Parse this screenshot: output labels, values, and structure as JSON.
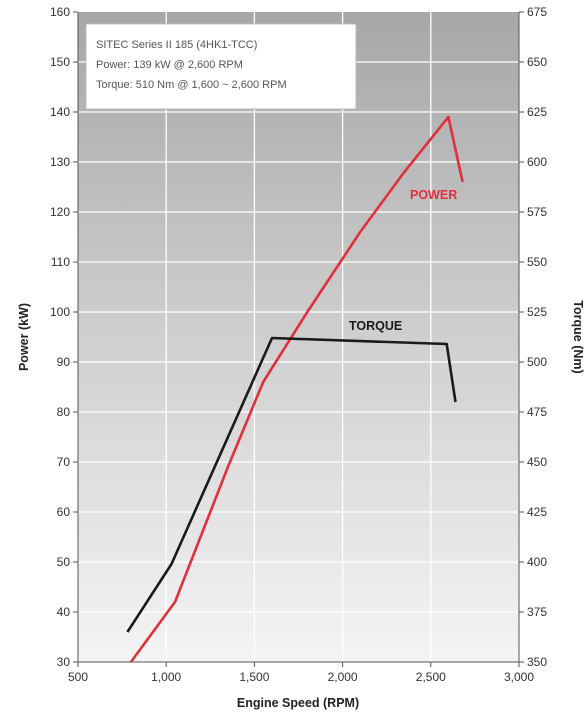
{
  "chart_data": {
    "type": "line",
    "legend_box": {
      "lines": [
        "SITEC Series II 185 (4HK1-TCC)",
        "Power: 139 kW @ 2,600 RPM",
        "Torque: 510 Nm @ 1,600 ~ 2,600 RPM"
      ],
      "placement": "top-left"
    },
    "xlabel": "Engine Speed (RPM)",
    "ylabel_left": "Power (kW)",
    "ylabel_right": "Torque (Nm)",
    "xlim": [
      500,
      3000
    ],
    "ylim_left": [
      30,
      160
    ],
    "ylim_right": [
      350,
      675
    ],
    "x_ticks": [
      500,
      1000,
      1500,
      2000,
      2500,
      3000
    ],
    "x_tick_labels": [
      "500",
      "1,000",
      "1,500",
      "2,000",
      "2,500",
      "3,000"
    ],
    "y_left_ticks": [
      30,
      40,
      50,
      60,
      70,
      80,
      90,
      100,
      110,
      120,
      130,
      140,
      150,
      160
    ],
    "y_left_tick_labels": [
      "30",
      "40",
      "50",
      "60",
      "70",
      "80",
      "90",
      "100",
      "110",
      "120",
      "130",
      "140",
      "150",
      "160"
    ],
    "y_right_ticks": [
      350,
      375,
      400,
      425,
      450,
      475,
      500,
      525,
      550,
      575,
      600,
      625,
      650,
      675
    ],
    "y_right_tick_labels": [
      "350",
      "375",
      "400",
      "425",
      "450",
      "475",
      "500",
      "525",
      "550",
      "575",
      "600",
      "625",
      "650",
      "675"
    ],
    "grid": true,
    "series": [
      {
        "name": "POWER",
        "axis": "left",
        "color": "#e0303c",
        "x": [
          800,
          1050,
          1350,
          1550,
          1800,
          2100,
          2350,
          2600,
          2680
        ],
        "y": [
          30,
          42,
          69,
          86,
          100,
          116,
          128,
          139,
          126
        ]
      },
      {
        "name": "TORQUE",
        "axis": "right",
        "color": "#1a1a1a",
        "x": [
          780,
          1030,
          1600,
          2590,
          2640
        ],
        "y": [
          365,
          399,
          512,
          509,
          480
        ]
      }
    ]
  }
}
